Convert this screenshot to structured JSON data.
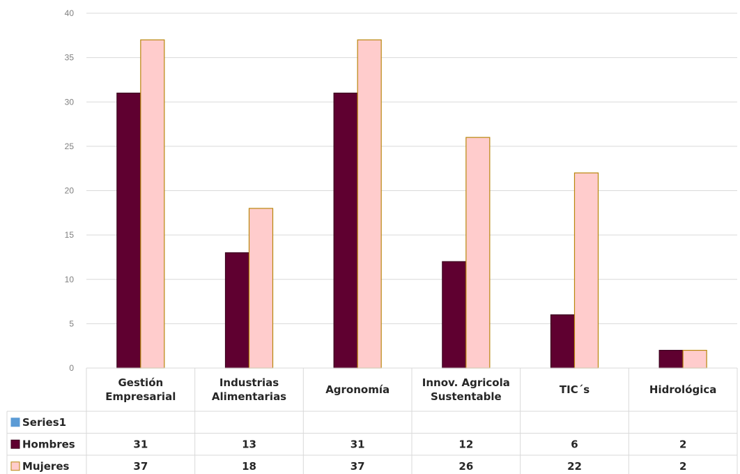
{
  "chart_data": {
    "type": "bar",
    "categories": [
      [
        "Gestión",
        "Empresarial"
      ],
      [
        "Industrias",
        "Alimentarias"
      ],
      [
        "Agronomía"
      ],
      [
        "Innov. Agricola",
        "Sustentable"
      ],
      [
        "TIC´s"
      ],
      [
        "Hidrológica"
      ]
    ],
    "series": [
      {
        "name": "Series1",
        "values": [
          null,
          null,
          null,
          null,
          null,
          null
        ],
        "color": "#5b9bd5",
        "border": "#5b9bd5"
      },
      {
        "name": "Hombres",
        "values": [
          31,
          13,
          31,
          12,
          6,
          2
        ],
        "color": "#5f0030",
        "border": "#3a001d"
      },
      {
        "name": "Mujeres",
        "values": [
          37,
          18,
          37,
          26,
          22,
          2
        ],
        "color": "#ffcccc",
        "border": "#b8860b"
      }
    ],
    "ylim": [
      0,
      40
    ],
    "yticks": [
      0,
      5,
      10,
      15,
      20,
      25,
      30,
      35,
      40
    ],
    "grid": true,
    "legend": "data-table-left",
    "title": "",
    "xlabel": "",
    "ylabel": ""
  }
}
